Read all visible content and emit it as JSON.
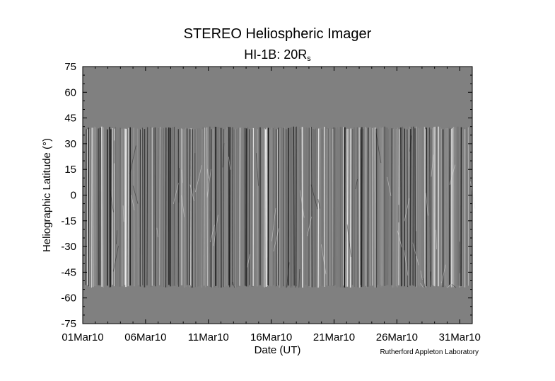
{
  "chart_data": {
    "type": "heatmap",
    "title": "STEREO Heliospheric Imager",
    "subtitle_main": "HI-1B: 20R",
    "subtitle_sub": "s",
    "xlabel": "Date (UT)",
    "ylabel": "Heliographic Latitude (°)",
    "x_tick_labels": [
      "01Mar10",
      "06Mar10",
      "11Mar10",
      "16Mar10",
      "21Mar10",
      "26Mar10",
      "31Mar10"
    ],
    "x_tick_days": [
      0,
      5,
      10,
      15,
      20,
      25,
      30
    ],
    "x_range_days": [
      0,
      31
    ],
    "y_tick_labels": [
      "75",
      "60",
      "45",
      "30",
      "15",
      "0",
      "-15",
      "-30",
      "-45",
      "-60",
      "-75"
    ],
    "y_tick_values": [
      75,
      60,
      45,
      30,
      15,
      0,
      -15,
      -30,
      -45,
      -60,
      -75
    ],
    "ylim": [
      -75,
      75
    ],
    "data_coverage_latitude": [
      -54,
      40
    ],
    "background_color": "#808080",
    "credit": "Rutherford Appleton Laboratory"
  }
}
